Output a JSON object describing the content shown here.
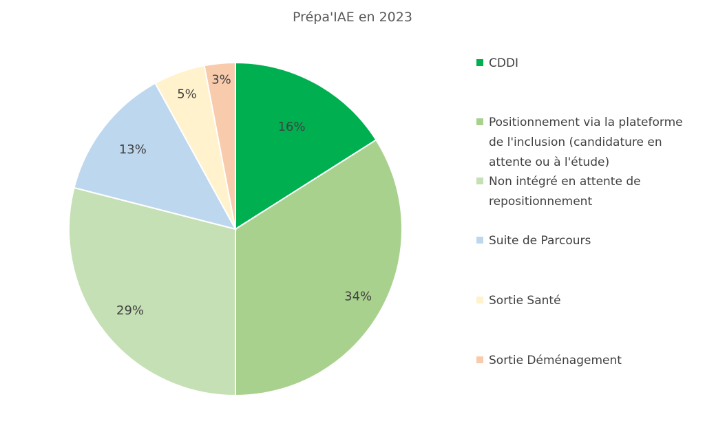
{
  "chart_data": {
    "type": "pie",
    "title": "Prépa'IAE en 2023",
    "legend_position": "right",
    "slices": [
      {
        "label": "CDDI",
        "value": 16,
        "value_label": "16%",
        "color": "#00B050"
      },
      {
        "label": "Positionnement via la plateforme de l'inclusion (candidature en attente ou à l'étude)",
        "value": 34,
        "value_label": "34%",
        "color": "#A9D18E"
      },
      {
        "label": "Non intégré en attente de repositionnement",
        "value": 29,
        "value_label": "29%",
        "color": "#C5E0B4"
      },
      {
        "label": "Suite de Parcours",
        "value": 13,
        "value_label": "13%",
        "color": "#BDD7EE"
      },
      {
        "label": "Sortie Santé",
        "value": 5,
        "value_label": "5%",
        "color": "#FFF2CC"
      },
      {
        "label": "Sortie Déménagement",
        "value": 3,
        "value_label": "3%",
        "color": "#F8CBAD"
      }
    ]
  }
}
